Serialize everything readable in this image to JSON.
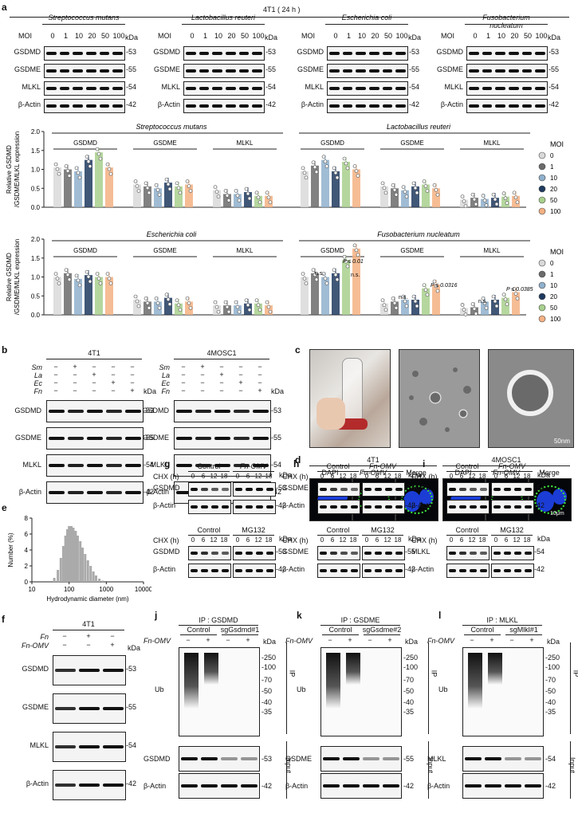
{
  "panel_a": {
    "letter": "a",
    "header": "4T1 ( 24 h )",
    "moi_label": "MOI",
    "moi_values": [
      "0",
      "1",
      "10",
      "20",
      "50",
      "100"
    ],
    "kda": "kDa",
    "rows": [
      "GSDMD",
      "GSDME",
      "MLKL",
      "β-Actin"
    ],
    "mw": [
      "53",
      "55",
      "54",
      "42"
    ],
    "blots": [
      {
        "species": "Streptococcus mutans"
      },
      {
        "species": "Lactobacillus reuteri"
      },
      {
        "species": "Escherichia coli"
      },
      {
        "species": "Fusobacterium nucleatum"
      }
    ],
    "legend_title": "MOI",
    "legend": [
      {
        "label": "0",
        "color": "#d9d9d9",
        "shape": "circle"
      },
      {
        "label": "1",
        "color": "#6b6b6b",
        "shape": "square"
      },
      {
        "label": "10",
        "color": "#8fb0cc",
        "shape": "triangle"
      },
      {
        "label": "20",
        "color": "#1f3a5f",
        "shape": "down-triangle"
      },
      {
        "label": "50",
        "color": "#a8d08d",
        "shape": "diamond"
      },
      {
        "label": "100",
        "color": "#f4b183",
        "shape": "circle"
      }
    ],
    "ylabel_line1": "Relative GSDMD",
    "ylabel_line2": "/GSDME/MLKL expression",
    "stats_annotations": {
      "fn_gsdmd": [
        "P ≤ 0.01",
        "n.s.",
        "n.s."
      ],
      "fn_gsdme": [
        "P ≤ 0.0316",
        "n.s."
      ],
      "fn_mlkl": [
        "P ≤ 0.0385",
        "n.s."
      ]
    }
  },
  "chart_data": [
    {
      "type": "bar",
      "title": "",
      "groups_top": [
        "Streptococcus mutans",
        "Lactobacillus reuteri"
      ],
      "categories": [
        "GSDMD",
        "GSDME",
        "MLKL",
        "GSDMD",
        "GSDME",
        "MLKL"
      ],
      "ylim": [
        0,
        2.0
      ],
      "yticks": [
        "0.0",
        "0.5",
        "1.0",
        "1.5",
        "2.0"
      ],
      "series": [
        {
          "name": "0",
          "values": [
            1.05,
            0.6,
            0.45,
            0.95,
            0.55,
            0.2
          ]
        },
        {
          "name": "1",
          "values": [
            1.0,
            0.55,
            0.35,
            1.1,
            0.5,
            0.25
          ]
        },
        {
          "name": "10",
          "values": [
            0.95,
            0.5,
            0.35,
            1.25,
            0.45,
            0.22
          ]
        },
        {
          "name": "20",
          "values": [
            1.25,
            0.65,
            0.4,
            0.95,
            0.55,
            0.25
          ]
        },
        {
          "name": "50",
          "values": [
            1.45,
            0.55,
            0.3,
            1.2,
            0.6,
            0.28
          ]
        },
        {
          "name": "100",
          "values": [
            1.05,
            0.6,
            0.3,
            1.0,
            0.5,
            0.3
          ]
        }
      ]
    },
    {
      "type": "bar",
      "title": "",
      "groups_top": [
        "Escherichia coli",
        "Fusobacterium nucleatum"
      ],
      "categories": [
        "GSDMD",
        "GSDME",
        "MLKL",
        "GSDMD",
        "GSDME",
        "MLKL"
      ],
      "ylim": [
        0,
        2.0
      ],
      "yticks": [
        "0.0",
        "0.5",
        "1.0",
        "1.5",
        "2.0"
      ],
      "series": [
        {
          "name": "0",
          "values": [
            1.0,
            0.4,
            0.25,
            1.0,
            0.3,
            0.18
          ]
        },
        {
          "name": "1",
          "values": [
            1.1,
            0.35,
            0.25,
            1.1,
            0.35,
            0.2
          ]
        },
        {
          "name": "10",
          "values": [
            0.95,
            0.35,
            0.25,
            1.0,
            0.4,
            0.35
          ]
        },
        {
          "name": "20",
          "values": [
            1.05,
            0.45,
            0.3,
            1.1,
            0.4,
            0.4
          ]
        },
        {
          "name": "50",
          "values": [
            1.0,
            0.3,
            0.3,
            1.45,
            0.7,
            0.45
          ]
        },
        {
          "name": "100",
          "values": [
            1.0,
            0.35,
            0.25,
            1.75,
            0.8,
            0.6
          ]
        }
      ]
    },
    {
      "type": "bar",
      "title": "",
      "xlabel": "Hydrodynamic diameter (nm)",
      "ylabel": "Number (%)",
      "xscale": "log",
      "xlim": [
        10,
        10000
      ],
      "ylim": [
        0,
        8
      ],
      "xticks": [
        "10",
        "100",
        "1000",
        "10000"
      ],
      "yticks": [
        "0",
        "2",
        "4",
        "6",
        "8"
      ],
      "x": [
        40,
        50,
        60,
        70,
        80,
        90,
        100,
        115,
        130,
        150,
        170,
        200,
        230,
        270,
        320,
        380,
        450,
        530,
        650,
        800
      ],
      "values": [
        0.5,
        1.5,
        3.0,
        4.5,
        5.8,
        6.6,
        7.0,
        7.0,
        6.8,
        6.4,
        5.8,
        5.1,
        4.3,
        3.5,
        2.7,
        2.0,
        1.3,
        0.8,
        0.4,
        0.15
      ]
    }
  ],
  "panel_b": {
    "letter": "b",
    "kda": "kDa",
    "blots": [
      {
        "cell": "4T1"
      },
      {
        "cell": "4MOSC1"
      }
    ],
    "treatments": [
      "Sm",
      "La",
      "Ec",
      "Fn"
    ],
    "rows": [
      "GSDMD",
      "GSDME",
      "MLKL",
      "β-Actin"
    ],
    "mw": [
      "53",
      "55",
      "54",
      "42"
    ],
    "pattern": [
      [
        "−",
        "+",
        "−",
        "−",
        "−"
      ],
      [
        "−",
        "−",
        "+",
        "−",
        "−"
      ],
      [
        "−",
        "−",
        "−",
        "+",
        "−"
      ],
      [
        "−",
        "−",
        "−",
        "−",
        "+"
      ]
    ]
  },
  "panel_c": {
    "letter": "c",
    "scale": "50nm"
  },
  "panel_d": {
    "letter": "d",
    "cells": [
      "4T1",
      "4MOSC1"
    ],
    "channels": [
      "DAPI",
      "Fn-OMV",
      "Merge"
    ],
    "scale": "10μm"
  },
  "panel_e": {
    "letter": "e"
  },
  "panel_f": {
    "letter": "f",
    "cell": "4T1",
    "kda": "kDa",
    "treatments": [
      "Fn",
      "Fn-OMV"
    ],
    "pattern": [
      [
        "−",
        "+",
        "−"
      ],
      [
        "−",
        "−",
        "+"
      ]
    ],
    "rows": [
      "GSDMD",
      "GSDME",
      "MLKL",
      "β-Actin"
    ],
    "mw": [
      "53",
      "55",
      "54",
      "42"
    ]
  },
  "panel_ghi": {
    "letters": [
      "g",
      "h",
      "i"
    ],
    "chx": "CHX (h)",
    "times": [
      "0",
      "6",
      "12",
      "18"
    ],
    "kda": "kDa",
    "top_groups": [
      "Control",
      "Fn-OMV"
    ],
    "bottom_groups": [
      "Control",
      "MG132"
    ],
    "targets": [
      {
        "name": "GSDMD",
        "mw": "53"
      },
      {
        "name": "GSDME",
        "mw": "55"
      },
      {
        "name": "MLKL",
        "mw": "54"
      }
    ],
    "actin": "β-Actin",
    "actin_mw": "42"
  },
  "panel_jkl": {
    "letters": [
      "j",
      "k",
      "l"
    ],
    "ip": [
      "IP : GSDMD",
      "IP : GSDME",
      "IP : MLKL"
    ],
    "groups": [
      [
        "Control",
        "sgGsdmd#1"
      ],
      [
        "Control",
        "sgGsdme#2"
      ],
      [
        "Control",
        "sgMlkl#1"
      ]
    ],
    "fn_omv": "Fn-OMV",
    "pattern": [
      "−",
      "+",
      "−",
      "+"
    ],
    "kda": "kDa",
    "ub": "Ub",
    "ub_mw": [
      "250",
      "100",
      "70",
      "50",
      "40",
      "35"
    ],
    "ip_label": "IP",
    "input_label": "Input",
    "targets": [
      {
        "name": "GSDMD",
        "mw": "53"
      },
      {
        "name": "GSDME",
        "mw": "55"
      },
      {
        "name": "MLKL",
        "mw": "54"
      }
    ],
    "actin": "β-Actin",
    "actin_mw": "42"
  }
}
